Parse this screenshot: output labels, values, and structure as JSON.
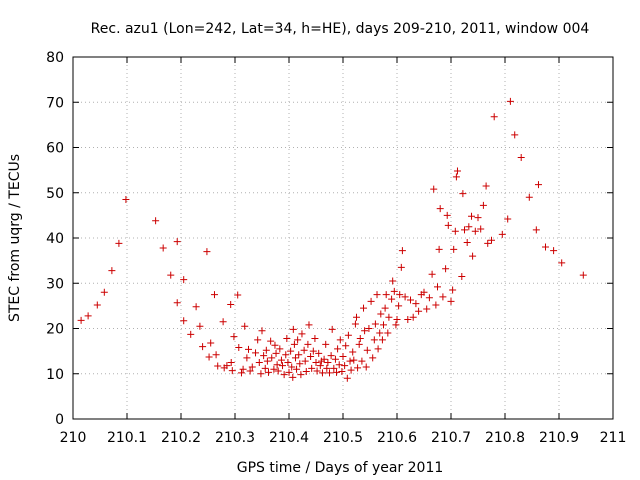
{
  "chart_data": {
    "type": "scatter",
    "title": "Rec. azu1 (Lon=242, Lat=34, h=HE), days 209-210, 2011, window 004",
    "xlabel": "GPS time / Days of year 2011",
    "ylabel": "STEC from uqrg / TECUs",
    "xlim": [
      210,
      211
    ],
    "ylim": [
      0,
      80
    ],
    "xticks": [
      210,
      210.1,
      210.2,
      210.3,
      210.4,
      210.5,
      210.6,
      210.7,
      210.8,
      210.9,
      211
    ],
    "xtick_labels": [
      "210",
      "210.1",
      "210.2",
      "210.3",
      "210.4",
      "210.5",
      "210.6",
      "210.7",
      "210.8",
      "210.9",
      "211"
    ],
    "yticks": [
      0,
      10,
      20,
      30,
      40,
      50,
      60,
      70,
      80
    ],
    "ytick_labels": [
      "0",
      "10",
      "20",
      "30",
      "40",
      "50",
      "60",
      "70",
      "80"
    ],
    "grid": true,
    "legend": "none",
    "marker": "plus",
    "color": "#cc0000",
    "series": [
      {
        "points": [
          [
            210.015,
            21.8
          ],
          [
            210.028,
            22.8
          ],
          [
            210.045,
            25.2
          ],
          [
            210.058,
            28.0
          ],
          [
            210.072,
            32.8
          ],
          [
            210.085,
            38.8
          ],
          [
            210.098,
            48.5
          ],
          [
            210.153,
            43.8
          ],
          [
            210.167,
            37.8
          ],
          [
            210.181,
            31.8
          ],
          [
            210.193,
            39.2
          ],
          [
            210.205,
            30.8
          ],
          [
            210.193,
            25.7
          ],
          [
            210.205,
            21.7
          ],
          [
            210.218,
            18.7
          ],
          [
            210.228,
            24.8
          ],
          [
            210.235,
            20.5
          ],
          [
            210.24,
            16.0
          ],
          [
            210.248,
            37.0
          ],
          [
            210.252,
            13.7
          ],
          [
            210.255,
            16.8
          ],
          [
            210.262,
            27.5
          ],
          [
            210.265,
            14.2
          ],
          [
            210.268,
            11.7
          ],
          [
            210.278,
            21.5
          ],
          [
            210.28,
            11.3
          ],
          [
            210.285,
            11.8
          ],
          [
            210.292,
            25.3
          ],
          [
            210.293,
            12.5
          ],
          [
            210.295,
            10.7
          ],
          [
            210.298,
            18.2
          ],
          [
            210.305,
            27.4
          ],
          [
            210.307,
            15.8
          ],
          [
            210.312,
            10.2
          ],
          [
            210.315,
            11.0
          ],
          [
            210.318,
            20.5
          ],
          [
            210.322,
            13.5
          ],
          [
            210.325,
            15.4
          ],
          [
            210.328,
            10.6
          ],
          [
            210.332,
            11.5
          ],
          [
            210.338,
            14.6
          ],
          [
            210.342,
            17.5
          ],
          [
            210.345,
            12.5
          ],
          [
            210.348,
            10.0
          ],
          [
            210.35,
            19.5
          ],
          [
            210.353,
            14.0
          ],
          [
            210.356,
            11.2
          ],
          [
            210.358,
            15.2
          ],
          [
            210.36,
            12.8
          ],
          [
            210.362,
            10.3
          ],
          [
            210.366,
            17.2
          ],
          [
            210.368,
            13.5
          ],
          [
            210.372,
            11.0
          ],
          [
            210.374,
            16.3
          ],
          [
            210.376,
            14.5
          ],
          [
            210.378,
            12.0
          ],
          [
            210.38,
            10.6
          ],
          [
            210.383,
            15.5
          ],
          [
            210.386,
            13.0
          ],
          [
            210.388,
            11.8
          ],
          [
            210.391,
            9.8
          ],
          [
            210.394,
            14.2
          ],
          [
            210.396,
            17.8
          ],
          [
            210.398,
            12.5
          ],
          [
            210.4,
            10.3
          ],
          [
            210.403,
            15.0
          ],
          [
            210.405,
            11.5
          ],
          [
            210.407,
            9.2
          ],
          [
            210.408,
            19.8
          ],
          [
            210.41,
            16.5
          ],
          [
            210.412,
            13.5
          ],
          [
            210.414,
            11.0
          ],
          [
            210.416,
            17.5
          ],
          [
            210.418,
            14.2
          ],
          [
            210.42,
            12.2
          ],
          [
            210.422,
            9.8
          ],
          [
            210.424,
            18.8
          ],
          [
            210.428,
            15.2
          ],
          [
            210.43,
            12.8
          ],
          [
            210.432,
            10.5
          ],
          [
            210.435,
            16.5
          ],
          [
            210.437,
            20.8
          ],
          [
            210.44,
            13.8
          ],
          [
            210.442,
            11.2
          ],
          [
            210.445,
            15.0
          ],
          [
            210.448,
            17.8
          ],
          [
            210.45,
            12.5
          ],
          [
            210.452,
            10.6
          ],
          [
            210.455,
            14.5
          ],
          [
            210.458,
            11.8
          ],
          [
            210.46,
            12.8
          ],
          [
            210.462,
            10.2
          ],
          [
            210.465,
            13.2
          ],
          [
            210.468,
            16.5
          ],
          [
            210.47,
            11.2
          ],
          [
            210.472,
            12.5
          ],
          [
            210.475,
            10.2
          ],
          [
            210.478,
            14.0
          ],
          [
            210.48,
            19.8
          ],
          [
            210.483,
            11.2
          ],
          [
            210.486,
            13.2
          ],
          [
            210.488,
            10.3
          ],
          [
            210.49,
            15.5
          ],
          [
            210.493,
            12.0
          ],
          [
            210.495,
            17.5
          ],
          [
            210.498,
            10.5
          ],
          [
            210.5,
            13.8
          ],
          [
            210.503,
            11.8
          ],
          [
            210.505,
            16.2
          ],
          [
            210.508,
            9.0
          ],
          [
            210.51,
            18.5
          ],
          [
            210.513,
            12.8
          ],
          [
            210.515,
            10.8
          ],
          [
            210.518,
            14.8
          ],
          [
            210.52,
            13.0
          ],
          [
            210.523,
            21.0
          ],
          [
            210.525,
            22.5
          ],
          [
            210.527,
            11.3
          ],
          [
            210.53,
            16.5
          ],
          [
            210.532,
            17.8
          ],
          [
            210.535,
            12.8
          ],
          [
            210.538,
            24.5
          ],
          [
            210.54,
            19.5
          ],
          [
            210.543,
            11.5
          ],
          [
            210.545,
            15.2
          ],
          [
            210.548,
            20.0
          ],
          [
            210.552,
            26.0
          ],
          [
            210.555,
            13.5
          ],
          [
            210.558,
            17.5
          ],
          [
            210.56,
            21.0
          ],
          [
            210.563,
            27.5
          ],
          [
            210.565,
            15.5
          ],
          [
            210.568,
            19.0
          ],
          [
            210.57,
            23.2
          ],
          [
            210.573,
            17.5
          ],
          [
            210.575,
            20.8
          ],
          [
            210.578,
            24.5
          ],
          [
            210.58,
            27.5
          ],
          [
            210.583,
            19.0
          ],
          [
            210.585,
            22.5
          ],
          [
            210.59,
            26.5
          ],
          [
            210.592,
            30.5
          ],
          [
            210.595,
            28.2
          ],
          [
            210.598,
            20.8
          ],
          [
            210.6,
            22.0
          ],
          [
            210.603,
            25.0
          ],
          [
            210.605,
            27.5
          ],
          [
            210.608,
            33.5
          ],
          [
            210.61,
            37.2
          ],
          [
            210.615,
            27.0
          ],
          [
            210.62,
            22.0
          ],
          [
            210.625,
            26.3
          ],
          [
            210.63,
            22.5
          ],
          [
            210.635,
            25.5
          ],
          [
            210.64,
            23.8
          ],
          [
            210.645,
            27.5
          ],
          [
            210.65,
            28.0
          ],
          [
            210.655,
            24.3
          ],
          [
            210.66,
            26.8
          ],
          [
            210.665,
            32.0
          ],
          [
            210.668,
            50.8
          ],
          [
            210.672,
            25.2
          ],
          [
            210.675,
            29.2
          ],
          [
            210.678,
            37.5
          ],
          [
            210.68,
            46.5
          ],
          [
            210.685,
            27.0
          ],
          [
            210.69,
            33.2
          ],
          [
            210.693,
            45.0
          ],
          [
            210.695,
            42.8
          ],
          [
            210.7,
            26.0
          ],
          [
            210.703,
            28.5
          ],
          [
            210.705,
            37.5
          ],
          [
            210.708,
            41.5
          ],
          [
            210.71,
            53.5
          ],
          [
            210.712,
            54.8
          ],
          [
            210.72,
            31.5
          ],
          [
            210.722,
            49.8
          ],
          [
            210.725,
            41.8
          ],
          [
            210.73,
            39.0
          ],
          [
            210.733,
            42.5
          ],
          [
            210.738,
            44.8
          ],
          [
            210.74,
            36.0
          ],
          [
            210.745,
            41.5
          ],
          [
            210.75,
            44.5
          ],
          [
            210.755,
            42.0
          ],
          [
            210.76,
            47.2
          ],
          [
            210.765,
            51.5
          ],
          [
            210.768,
            38.8
          ],
          [
            210.775,
            39.5
          ],
          [
            210.78,
            66.8
          ],
          [
            210.795,
            40.8
          ],
          [
            210.805,
            44.2
          ],
          [
            210.81,
            70.2
          ],
          [
            210.818,
            62.8
          ],
          [
            210.83,
            57.8
          ],
          [
            210.845,
            49.0
          ],
          [
            210.858,
            41.8
          ],
          [
            210.862,
            51.8
          ],
          [
            210.875,
            38.0
          ],
          [
            210.89,
            37.2
          ],
          [
            210.905,
            34.5
          ],
          [
            210.945,
            31.8
          ]
        ]
      }
    ]
  }
}
